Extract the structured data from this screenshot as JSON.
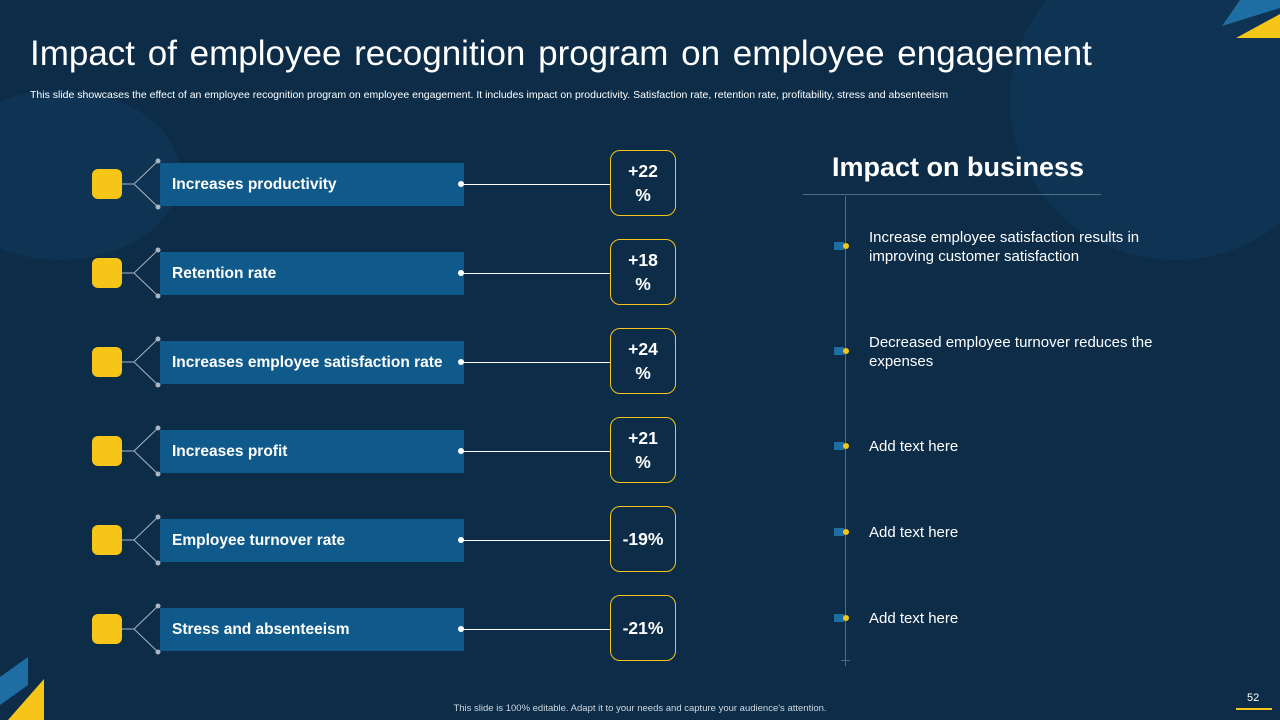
{
  "title": "Impact of employee recognition program on employee engagement",
  "subtitle": "This slide showcases the effect of an employee recognition program on employee engagement. It includes impact on productivity. Satisfaction rate, retention rate, profitability, stress and absenteeism",
  "metrics": [
    {
      "label": "Increases productivity",
      "value": "+22 %"
    },
    {
      "label": "Retention rate",
      "value": "+18 %"
    },
    {
      "label": "Increases employee satisfaction rate",
      "value": "+24 %"
    },
    {
      "label": "Increases profit",
      "value": "+21 %"
    },
    {
      "label": "Employee turnover rate",
      "value": "-19%"
    },
    {
      "label": "Stress and absenteeism",
      "value": "-21%"
    }
  ],
  "business": {
    "title": "Impact on business",
    "items": [
      "Increase employee satisfaction results in improving customer satisfaction",
      "Decreased employee turnover reduces the expenses",
      "Add text here",
      "Add text here",
      "Add text here"
    ]
  },
  "footer": "This slide is 100% editable. Adapt it to your needs and capture your audience's attention.",
  "page_number": "52",
  "colors": {
    "background": "#0c2c48",
    "accent": "#f5c518",
    "label_box": "#0f5a8a"
  }
}
